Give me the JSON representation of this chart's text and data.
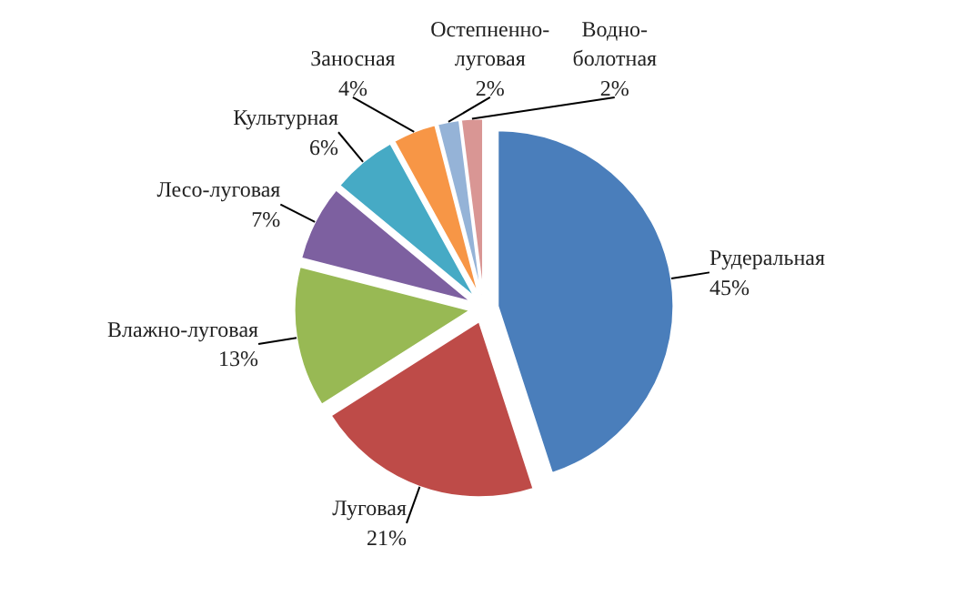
{
  "chart_data": {
    "type": "pie",
    "categories": [
      "Рудеральная",
      "Луговая",
      "Влажно-луговая",
      "Лесо-луговая",
      "Культурная",
      "Заносная",
      "Остепненно-луговая",
      "Водно-болотная"
    ],
    "values": [
      45,
      21,
      13,
      7,
      6,
      4,
      2,
      2
    ],
    "colors": [
      "#4a7ebb",
      "#be4b48",
      "#98b954",
      "#7d60a0",
      "#46aac5",
      "#f79646",
      "#95b3d7",
      "#d99694"
    ],
    "value_labels": [
      "45%",
      "21%",
      "13%",
      "7%",
      "6%",
      "4%",
      "2%",
      "2%"
    ]
  }
}
